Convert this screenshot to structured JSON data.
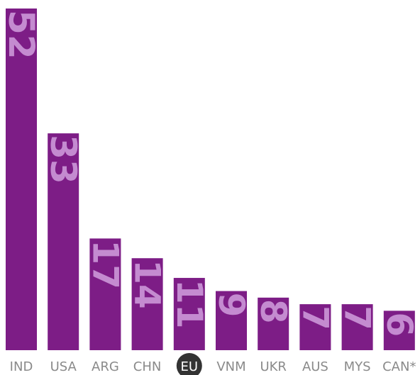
{
  "chart_data": {
    "type": "bar",
    "categories": [
      "IND",
      "USA",
      "ARG",
      "CHN",
      "EU",
      "VNM",
      "UKR",
      "AUS",
      "MYS",
      "CAN*"
    ],
    "values": [
      52,
      33,
      17,
      14,
      11,
      9,
      8,
      7,
      7,
      6
    ],
    "color": "#7d1d86",
    "highlight_category": "EU"
  }
}
